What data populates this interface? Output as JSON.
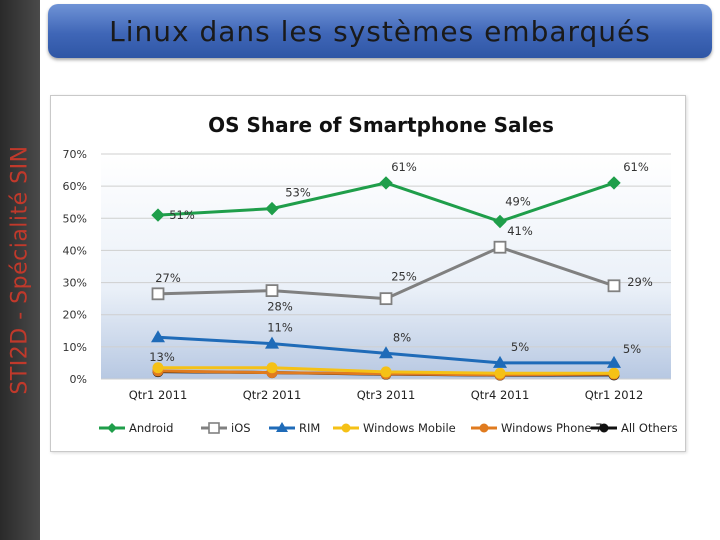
{
  "slide": {
    "title": "Linux dans les systèmes embarqués",
    "side_label": "STI2D  -  Spécialité SIN"
  },
  "chart_data": {
    "type": "line",
    "title": "OS Share of Smartphone Sales",
    "categories": [
      "Qtr1 2011",
      "Qtr2 2011",
      "Qtr3 2011",
      "Qtr4 2011",
      "Qtr1 2012"
    ],
    "y_ticks": [
      "0%",
      "10%",
      "20%",
      "30%",
      "40%",
      "50%",
      "60%",
      "70%"
    ],
    "ylim": [
      0,
      70
    ],
    "legend_position": "bottom",
    "series": [
      {
        "name": "Android",
        "values": [
          51,
          53,
          61,
          49,
          61
        ],
        "labels": [
          "51%",
          "53%",
          "61%",
          "49%",
          "61%"
        ],
        "color": "#1f9e4a",
        "marker": "diamond"
      },
      {
        "name": "iOS",
        "values": [
          26.5,
          27.5,
          25,
          41,
          29
        ],
        "labels": [
          "27%",
          "28%",
          "25%",
          "41%",
          "29%"
        ],
        "color": "#808080",
        "marker": "square"
      },
      {
        "name": "RIM",
        "values": [
          13,
          11,
          8,
          5,
          5
        ],
        "labels": [
          "13%",
          "11%",
          "8%",
          "5%",
          "5%"
        ],
        "color": "#1f6bb8",
        "marker": "triangle"
      },
      {
        "name": "Windows Mobile",
        "values": [
          3.5,
          3.5,
          2.2,
          1.8,
          1.8
        ],
        "color": "#f5c116",
        "marker": "circle"
      },
      {
        "name": "Windows Phone 7",
        "values": [
          2.5,
          2,
          1.6,
          1.3,
          1.5
        ],
        "color": "#e07b1f",
        "marker": "circle"
      },
      {
        "name": "All Others",
        "values": [
          2.3,
          2,
          1.5,
          1.2,
          1.3
        ],
        "color": "#111111",
        "marker": "circle"
      }
    ]
  }
}
